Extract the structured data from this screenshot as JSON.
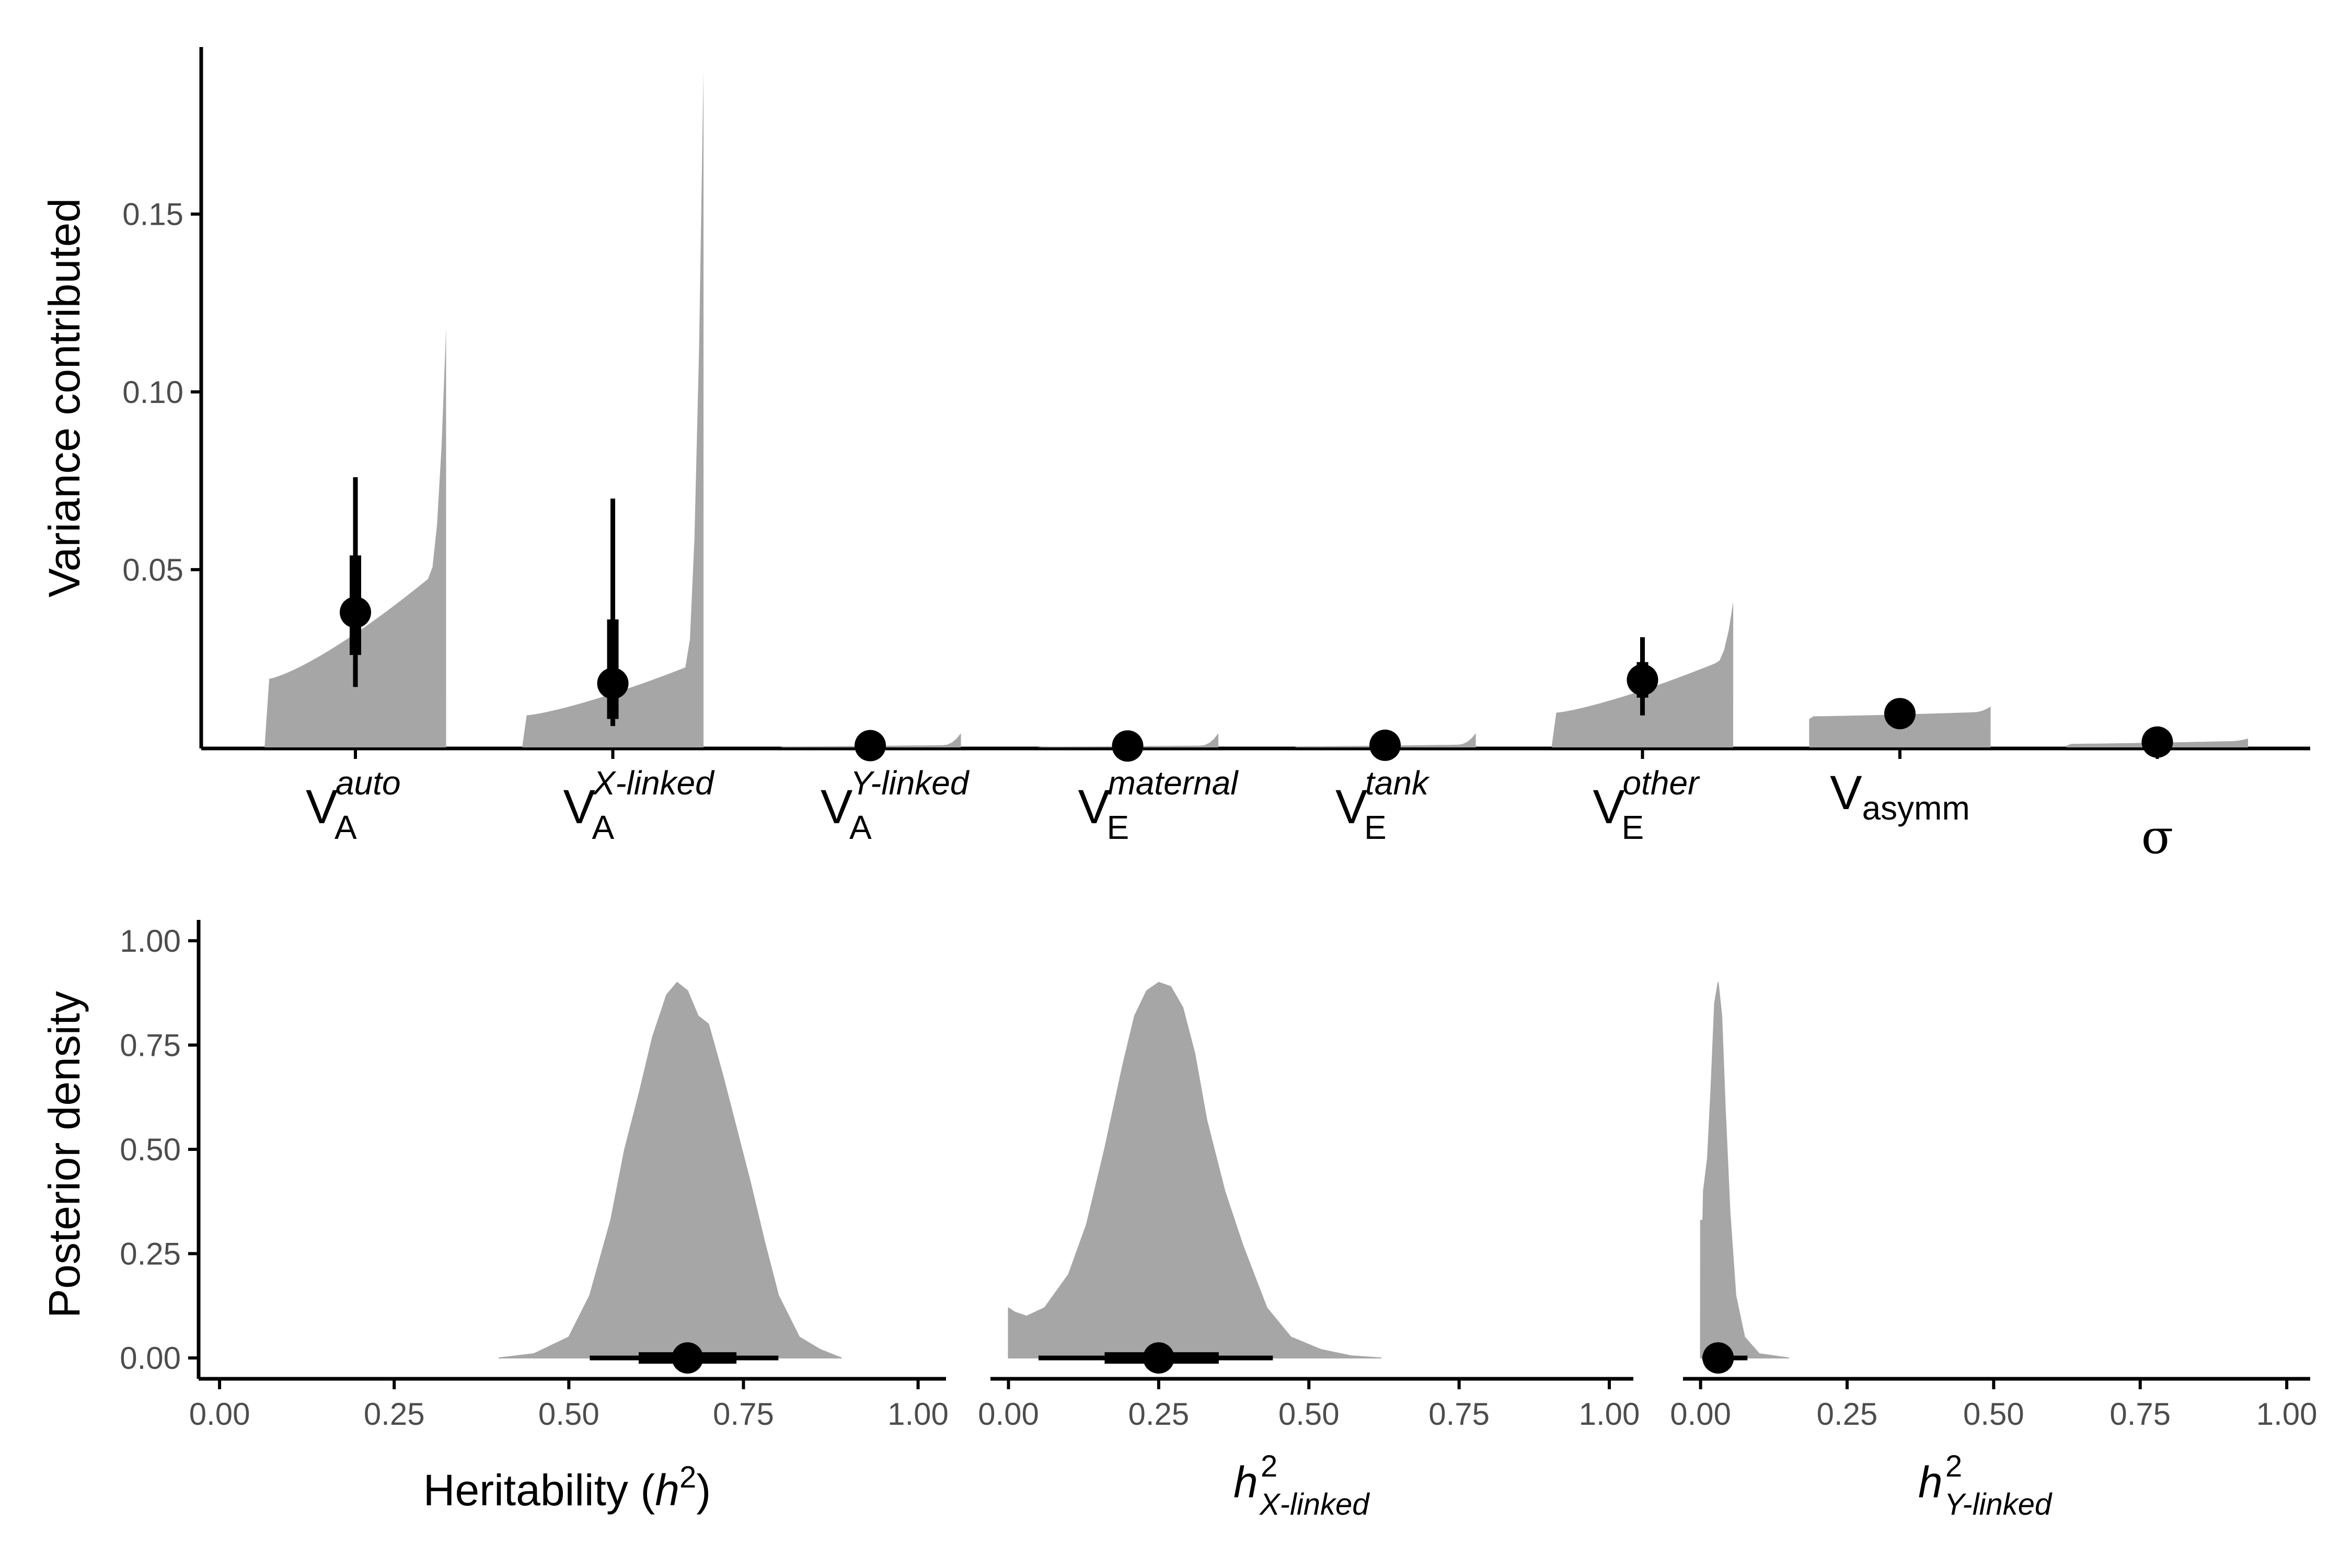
{
  "colors": {
    "density_fill": "#a6a6a6",
    "point": "#000000",
    "axis": "#000000",
    "tick_text": "#4d4d4d"
  },
  "chart_data": [
    {
      "type": "area",
      "subtype": "half-eye posterior distributions with point estimate and intervals",
      "ylabel": "Variance contributed",
      "yticks": [
        "0.05",
        "0.10",
        "0.15"
      ],
      "ylim": [
        -0.0003,
        0.197
      ],
      "grid": false,
      "categories": [
        {
          "base": "V",
          "sub": "A",
          "sup": "auto",
          "median": 0.038,
          "interval_66": [
            0.026,
            0.054
          ],
          "interval_95": [
            0.017,
            0.076
          ],
          "dist_min": 0.0005,
          "dist_max": 0.118
        },
        {
          "base": "V",
          "sub": "A",
          "sup": "X-linked",
          "median": 0.018,
          "interval_66": [
            0.008,
            0.036
          ],
          "interval_95": [
            0.006,
            0.07
          ],
          "dist_min": 0.0,
          "dist_max": 0.19
        },
        {
          "base": "V",
          "sub": "A",
          "sup": "Y-linked",
          "median": 0.0005,
          "interval_66": [
            0.0001,
            0.0012
          ],
          "interval_95": [
            0.0,
            0.002
          ],
          "dist_min": 0.0,
          "dist_max": 0.004
        },
        {
          "base": "V",
          "sub": "E",
          "sup": "maternal",
          "median": 0.0004,
          "interval_66": [
            0.0001,
            0.001
          ],
          "interval_95": [
            0.0,
            0.002
          ],
          "dist_min": 0.0,
          "dist_max": 0.004
        },
        {
          "base": "V",
          "sub": "E",
          "sup": "tank",
          "median": 0.0006,
          "interval_66": [
            0.0002,
            0.0012
          ],
          "interval_95": [
            0.0,
            0.002
          ],
          "dist_min": 0.0,
          "dist_max": 0.004
        },
        {
          "base": "V",
          "sub": "E",
          "sup": "other",
          "median": 0.019,
          "interval_66": [
            0.014,
            0.024
          ],
          "interval_95": [
            0.009,
            0.031
          ],
          "dist_min": 0.0005,
          "dist_max": 0.041
        },
        {
          "base": "V",
          "sub": "asymm",
          "sup": "",
          "median": 0.0095,
          "interval_66": [
            0.0092,
            0.0098
          ],
          "interval_95": [
            0.009,
            0.01
          ],
          "dist_min": 0.008,
          "dist_max": 0.0115
        },
        {
          "base": "σ",
          "sub": "",
          "sup": "",
          "median": 0.0015,
          "interval_66": [
            0.0013,
            0.0017
          ],
          "interval_95": [
            0.0012,
            0.0018
          ],
          "dist_min": 0.0005,
          "dist_max": 0.0025
        }
      ]
    },
    {
      "type": "area",
      "subtype": "posterior density with point estimate and intervals",
      "ylabel": "Posterior density",
      "xlabel": {
        "text": "Heritability (",
        "italic": "h",
        "sup": "2",
        "close": ")"
      },
      "xlim": [
        -0.03,
        1.04
      ],
      "ylim": [
        -0.05,
        1.05
      ],
      "xticks": [
        "0.00",
        "0.25",
        "0.50",
        "0.75",
        "1.00"
      ],
      "yticks": [
        "0.00",
        "0.25",
        "0.50",
        "0.75",
        "1.00"
      ],
      "grid": false,
      "density": {
        "x": [
          0.4,
          0.45,
          0.5,
          0.53,
          0.56,
          0.58,
          0.6,
          0.62,
          0.64,
          0.655,
          0.67,
          0.685,
          0.7,
          0.72,
          0.74,
          0.76,
          0.78,
          0.8,
          0.83,
          0.86,
          0.89
        ],
        "y": [
          0.0,
          0.01,
          0.05,
          0.15,
          0.33,
          0.5,
          0.63,
          0.77,
          0.87,
          0.9,
          0.88,
          0.82,
          0.8,
          0.68,
          0.55,
          0.42,
          0.28,
          0.15,
          0.05,
          0.02,
          0.0
        ]
      },
      "median": 0.67,
      "interval_66": [
        0.6,
        0.74
      ],
      "interval_95": [
        0.53,
        0.8
      ]
    },
    {
      "type": "area",
      "subtype": "posterior density with point estimate and intervals",
      "xlabel": {
        "italic": "h",
        "sup": "2",
        "sub": "X-linked"
      },
      "xlim": [
        -0.03,
        1.04
      ],
      "ylim": [
        -0.05,
        1.05
      ],
      "xticks": [
        "0.00",
        "0.25",
        "0.50",
        "0.75",
        "1.00"
      ],
      "grid": false,
      "density": {
        "x": [
          0.0,
          0.01,
          0.03,
          0.06,
          0.1,
          0.13,
          0.16,
          0.19,
          0.21,
          0.23,
          0.25,
          0.27,
          0.29,
          0.31,
          0.33,
          0.36,
          0.39,
          0.43,
          0.47,
          0.52,
          0.57,
          0.62
        ],
        "y": [
          0.12,
          0.11,
          0.1,
          0.12,
          0.2,
          0.32,
          0.5,
          0.7,
          0.82,
          0.88,
          0.9,
          0.89,
          0.84,
          0.73,
          0.57,
          0.4,
          0.27,
          0.12,
          0.05,
          0.02,
          0.005,
          0.0
        ]
      },
      "median": 0.25,
      "interval_66": [
        0.16,
        0.35
      ],
      "interval_95": [
        0.05,
        0.44
      ]
    },
    {
      "type": "area",
      "subtype": "posterior density with point estimate and intervals",
      "xlabel": {
        "italic": "h",
        "sup": "2",
        "sub": "Y-linked"
      },
      "xlim": [
        -0.03,
        1.04
      ],
      "ylim": [
        -0.05,
        1.05
      ],
      "xticks": [
        "0.00",
        "0.25",
        "0.50",
        "0.75",
        "1.00"
      ],
      "grid": false,
      "density": {
        "x": [
          0.0,
          0.0001,
          0.004,
          0.005,
          0.012,
          0.018,
          0.024,
          0.03,
          0.036,
          0.042,
          0.05,
          0.06,
          0.075,
          0.1,
          0.15
        ],
        "y": [
          0.0,
          0.33,
          0.33,
          0.4,
          0.48,
          0.65,
          0.85,
          0.9,
          0.82,
          0.6,
          0.35,
          0.15,
          0.05,
          0.01,
          0.0
        ]
      },
      "median": 0.03,
      "interval_66": [
        0.012,
        0.05
      ],
      "interval_95": [
        0.003,
        0.08
      ]
    }
  ]
}
